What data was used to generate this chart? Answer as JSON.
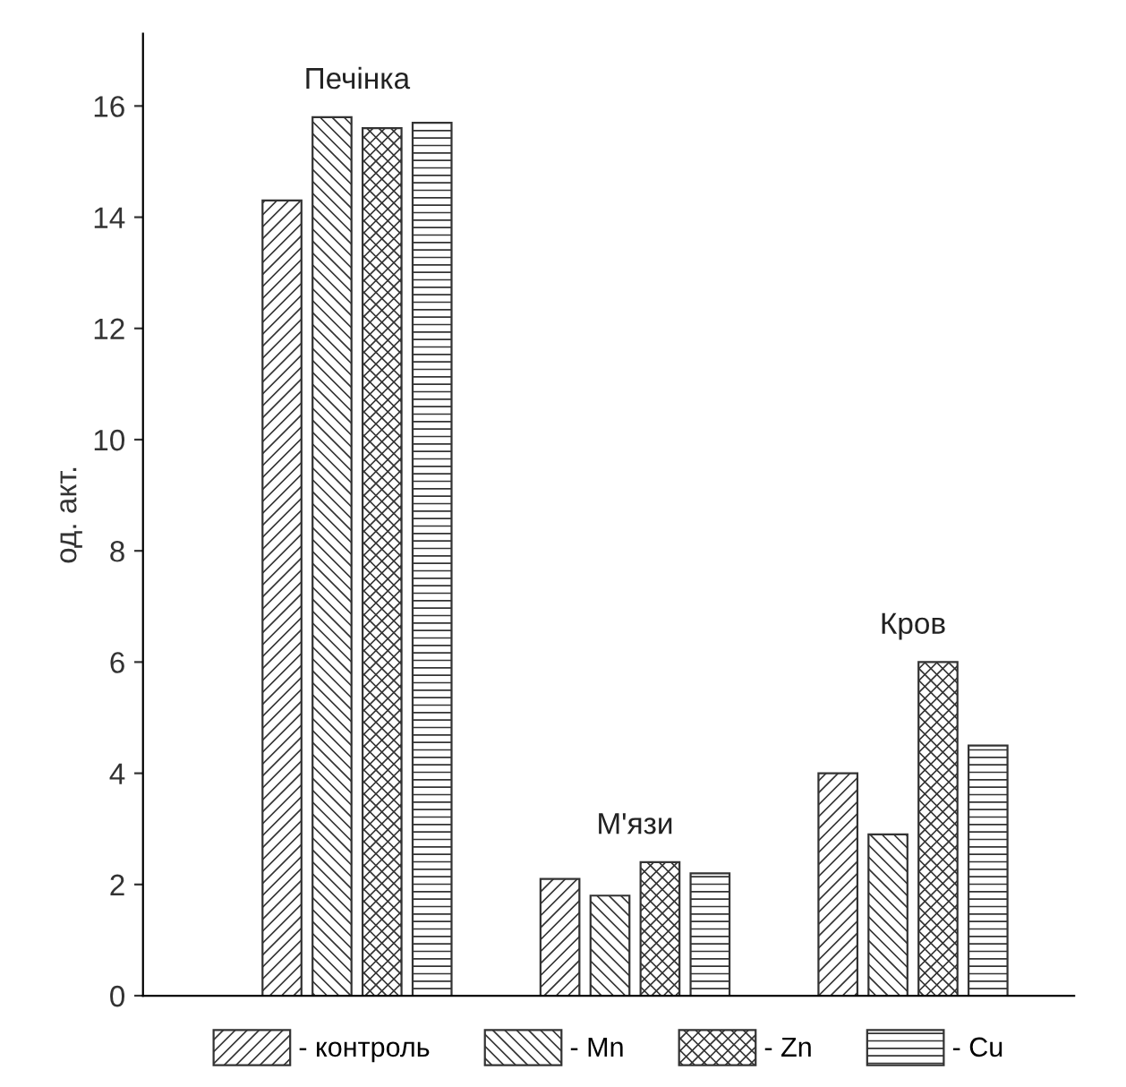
{
  "chart_data": {
    "type": "bar",
    "ylabel": "од. акт.",
    "categories": [
      "Печінка",
      "М'язи",
      "Кров"
    ],
    "series": [
      {
        "name": "- контроль",
        "color": "#333333",
        "values": [
          14.3,
          2.1,
          4.0
        ]
      },
      {
        "name": "- Mn",
        "color": "#333333",
        "values": [
          15.8,
          1.8,
          2.9
        ]
      },
      {
        "name": "- Zn",
        "color": "#333333",
        "values": [
          15.6,
          2.4,
          6.0
        ]
      },
      {
        "name": "- Cu",
        "color": "#333333",
        "values": [
          15.7,
          2.2,
          4.5
        ]
      }
    ],
    "ylim": [
      0,
      17.3
    ],
    "yticks": [
      0,
      2,
      4,
      6,
      8,
      10,
      12,
      14,
      16
    ],
    "grid": false,
    "legend": "bottom"
  }
}
